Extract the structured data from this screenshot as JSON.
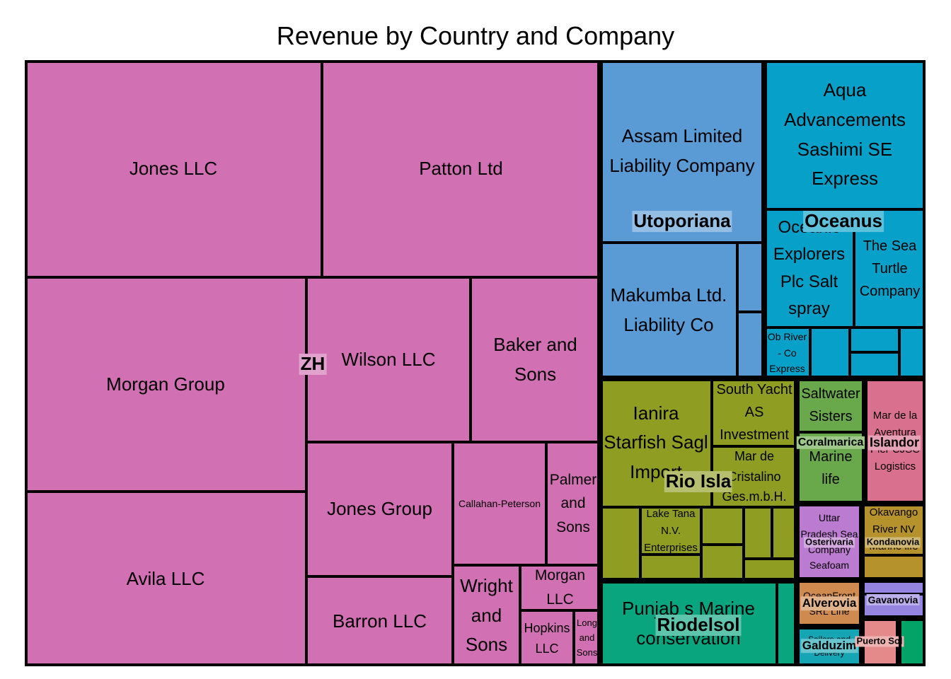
{
  "chart_data": {
    "type": "treemap",
    "title": "Revenue by Country and Company",
    "groups": [
      {
        "name": "ZH",
        "color": "#d170b3",
        "items": [
          {
            "name": "Jones LLC",
            "value": 41.6
          },
          {
            "name": "Patton Ltd",
            "value": 39.6
          },
          {
            "name": "Morgan Group",
            "value": 33.8
          },
          {
            "name": "Avila LLC",
            "value": 33.8
          },
          {
            "name": "Wilson LLC",
            "value": 18.0
          },
          {
            "name": "Baker and Sons",
            "value": 15.3
          },
          {
            "name": "Jones Group",
            "value": 12.8
          },
          {
            "name": "Barron LLC",
            "value": 8.7
          },
          {
            "name": "Callahan-Peterson",
            "value": 8.9
          },
          {
            "name": "Palmer and Sons",
            "value": 5.8
          },
          {
            "name": "Wright and Sons",
            "value": 5.0
          },
          {
            "name": "Morgan LLC",
            "value": 3.2
          },
          {
            "name": "Hopkins LLC",
            "value": 2.1
          },
          {
            "name": "Long and Sons",
            "value": 1.1
          }
        ]
      },
      {
        "name": "Utoporiana",
        "color": "#5b9bd5",
        "items": [
          {
            "name": "Assam Limited Liability Company",
            "value": 9.3
          },
          {
            "name": "Makumba Ltd. Liability Co",
            "value": 7.9
          },
          {
            "name": "",
            "value": 1.0
          },
          {
            "name": "",
            "value": 1.2
          }
        ]
      },
      {
        "name": "Oceanus",
        "color": "#06a0c9",
        "items": [
          {
            "name": "Aqua Advancements Sashimi SE Express",
            "value": 8.0
          },
          {
            "name": "Oceanic Explorers Plc Salt spray",
            "value": 6.0
          },
          {
            "name": "The Sea Turtle Company",
            "value": 5.0
          },
          {
            "name": "Ob River - Co Express",
            "value": 1.8
          },
          {
            "name": "",
            "value": 1.3
          },
          {
            "name": "",
            "value": 0.8
          },
          {
            "name": "",
            "value": 0.8
          },
          {
            "name": "",
            "value": 0.7
          }
        ]
      },
      {
        "name": "Rio Isla",
        "color": "#8f9d22",
        "items": [
          {
            "name": "Ianira Starfish Sagl Import",
            "value": 5.4
          },
          {
            "name": "South Yacht AS Investment",
            "value": 2.8
          },
          {
            "name": "Mar de Cristalino Ges.m.b.H.",
            "value": 2.8
          },
          {
            "name": "",
            "value": 1.3
          },
          {
            "name": "Lake Tana N.V. Enterprises",
            "value": 1.4
          },
          {
            "name": "",
            "value": 1.0
          },
          {
            "name": "",
            "value": 0.6
          },
          {
            "name": "",
            "value": 0.6
          },
          {
            "name": "",
            "value": 1.3
          },
          {
            "name": "",
            "value": 0.4
          },
          {
            "name": "",
            "value": 0.5
          },
          {
            "name": "",
            "value": 1.0
          }
        ]
      },
      {
        "name": "Riodelsol",
        "color": "#08a57f",
        "items": [
          {
            "name": "Punjab s Marine conservation",
            "value": 6.1
          },
          {
            "name": "",
            "value": 0.6
          }
        ]
      },
      {
        "name": "Coralmarica",
        "color": "#6aa94b",
        "items": [
          {
            "name": "Saltwater Sisters",
            "value": 1.5
          },
          {
            "name": "Marine life",
            "value": 2.0
          }
        ]
      },
      {
        "name": "Islandor",
        "color": "#d8708e",
        "items": [
          {
            "name": "Mar de la Aventura Pier CJSC Logistics",
            "value": 2.7
          }
        ]
      },
      {
        "name": "Osterivaria",
        "color": "#bb7bd0",
        "items": [
          {
            "name": "Uttar Pradesh Sea Company Seafoam",
            "value": 1.8
          }
        ]
      },
      {
        "name": "Kondanovia",
        "color": "#b5922c",
        "items": [
          {
            "name": "Okavango River NV Marine life",
            "value": 1.2
          },
          {
            "name": "",
            "value": 0.6
          }
        ]
      },
      {
        "name": "Alverovia",
        "color": "#cf8a50",
        "items": [
          {
            "name": "OceanFront SRL Line",
            "value": 1.1
          }
        ]
      },
      {
        "name": "Gavanovia",
        "color": "#9685e0",
        "items": [
          {
            "name": "",
            "value": 0.5
          },
          {
            "name": "",
            "value": 0.6
          }
        ]
      },
      {
        "name": "Galduzim",
        "color": "#16a5b4",
        "items": [
          {
            "name": "Sailors and Delivery",
            "value": 0.9
          }
        ]
      },
      {
        "name": "Puerto Sol",
        "color": "#e58a8a",
        "items": [
          {
            "name": "",
            "value": 0.7
          }
        ]
      },
      {
        "name": "",
        "color": "#03a266",
        "items": [
          {
            "name": "",
            "value": 0.5
          }
        ]
      }
    ]
  }
}
